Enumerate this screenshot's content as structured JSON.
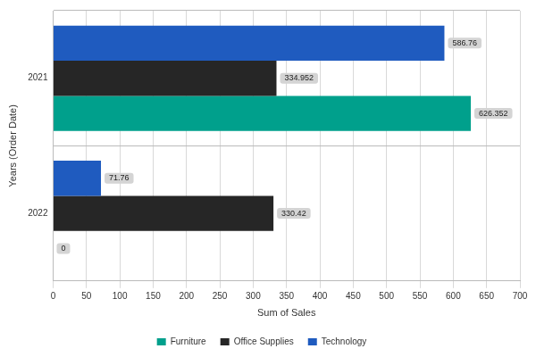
{
  "chart_data": {
    "type": "bar",
    "orientation": "horizontal",
    "categories": [
      "2021",
      "2022"
    ],
    "series": [
      {
        "name": "Furniture",
        "color": "#00a08c",
        "values": [
          626.352,
          0
        ]
      },
      {
        "name": "Office Supplies",
        "color": "#262626",
        "values": [
          334.952,
          330.42
        ]
      },
      {
        "name": "Technology",
        "color": "#1f5bbf",
        "values": [
          586.76,
          71.76
        ]
      }
    ],
    "x_label": "Sum of Sales",
    "y_label": "Years (Order Date)",
    "xlim": [
      0,
      700
    ],
    "xticks": [
      0,
      50,
      100,
      150,
      200,
      250,
      300,
      350,
      400,
      450,
      500,
      550,
      600,
      650,
      700
    ],
    "grid": true,
    "legend": "bottom",
    "data_labels": true
  }
}
